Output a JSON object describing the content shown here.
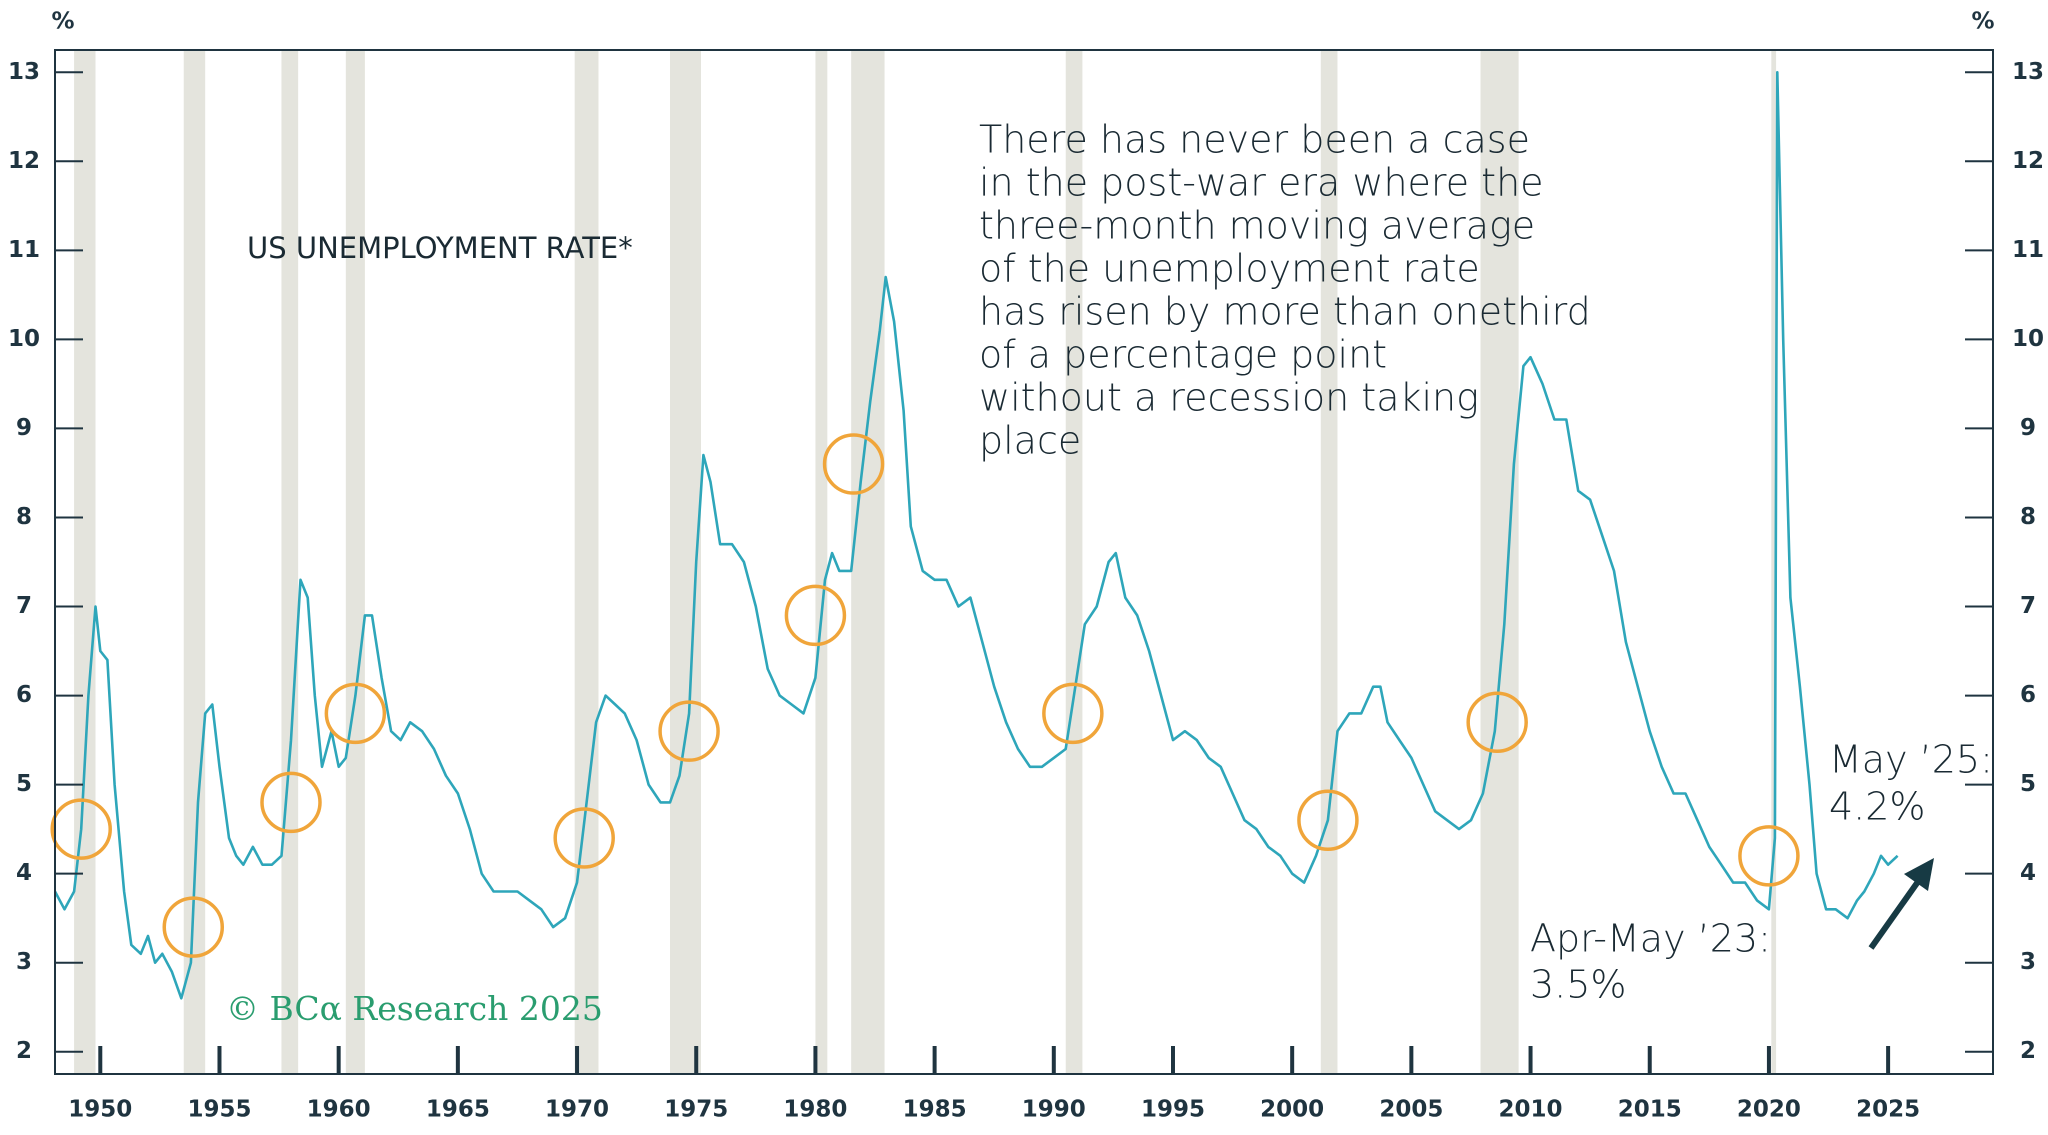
{
  "chart_data": {
    "type": "line",
    "title": "US UNEMPLOYMENT RATE*",
    "y_label": "%",
    "annotation_lines": [
      "There has never been a case",
      "in the post-war era where the",
      "three-month moving average",
      "of the unemployment rate",
      "has risen by more than onethird",
      "of a percentage point",
      "without a recession taking",
      "place"
    ],
    "latest_label": "May ’25:",
    "latest_value_label": "4.2%",
    "low_label": "Apr-May ’23:",
    "low_value_label": "3.5%",
    "source": "© BCα Research 2025",
    "xlim": [
      1948.1,
      2029.4
    ],
    "xticks": [
      1950,
      1955,
      1960,
      1965,
      1970,
      1975,
      1980,
      1985,
      1990,
      1995,
      2000,
      2005,
      2010,
      2015,
      2020,
      2025
    ],
    "ylim": [
      1.75,
      13.25
    ],
    "yticks": [
      2,
      3,
      4,
      5,
      6,
      7,
      8,
      9,
      10,
      11,
      12,
      13
    ],
    "recession_color": "#e4e4dd",
    "recessions": [
      [
        1948.9,
        1949.8
      ],
      [
        1953.5,
        1954.4
      ],
      [
        1957.6,
        1958.3
      ],
      [
        1960.3,
        1961.1
      ],
      [
        1969.9,
        1970.9
      ],
      [
        1973.9,
        1975.2
      ],
      [
        1980.0,
        1980.5
      ],
      [
        1981.5,
        1982.9
      ],
      [
        1990.5,
        1991.2
      ],
      [
        2001.2,
        2001.9
      ],
      [
        2007.9,
        2009.5
      ],
      [
        2020.1,
        2020.3
      ]
    ],
    "marker_color": "#f0a53a",
    "markers": {
      "x": [
        1949.2,
        1953.9,
        1958.0,
        1960.7,
        1970.3,
        1974.7,
        1980.0,
        1981.6,
        1990.8,
        2001.5,
        2008.6,
        2020.0
      ],
      "values": [
        4.5,
        3.4,
        4.8,
        5.8,
        4.4,
        5.6,
        6.9,
        8.6,
        5.8,
        4.6,
        5.7,
        4.2
      ]
    },
    "series": [
      {
        "color": "#2ea6ba",
        "x": [
          1948.1,
          1948.5,
          1948.9,
          1949.2,
          1949.5,
          1949.8,
          1950.0,
          1950.3,
          1950.6,
          1951.0,
          1951.3,
          1951.7,
          1952.0,
          1952.3,
          1952.6,
          1953.0,
          1953.4,
          1953.8,
          1954.1,
          1954.4,
          1954.7,
          1955.0,
          1955.4,
          1955.7,
          1956.0,
          1956.4,
          1956.8,
          1957.2,
          1957.6,
          1958.0,
          1958.4,
          1958.7,
          1959.0,
          1959.3,
          1959.7,
          1960.0,
          1960.3,
          1960.7,
          1961.1,
          1961.4,
          1961.8,
          1962.2,
          1962.6,
          1963.0,
          1963.5,
          1964.0,
          1964.5,
          1965.0,
          1965.5,
          1966.0,
          1966.5,
          1967.0,
          1967.5,
          1968.0,
          1968.5,
          1969.0,
          1969.5,
          1970.0,
          1970.4,
          1970.8,
          1971.2,
          1971.6,
          1972.0,
          1972.5,
          1973.0,
          1973.5,
          1973.9,
          1974.3,
          1974.7,
          1975.0,
          1975.3,
          1975.6,
          1976.0,
          1976.5,
          1977.0,
          1977.5,
          1978.0,
          1978.5,
          1979.0,
          1979.5,
          1980.0,
          1980.4,
          1980.7,
          1981.0,
          1981.5,
          1981.9,
          1982.3,
          1982.7,
          1982.95,
          1983.3,
          1983.7,
          1984.0,
          1984.5,
          1985.0,
          1985.5,
          1986.0,
          1986.5,
          1987.0,
          1987.5,
          1988.0,
          1988.5,
          1989.0,
          1989.5,
          1990.0,
          1990.5,
          1990.9,
          1991.3,
          1991.8,
          1992.3,
          1992.6,
          1993.0,
          1993.5,
          1994.0,
          1994.5,
          1995.0,
          1995.5,
          1996.0,
          1996.5,
          1997.0,
          1997.5,
          1998.0,
          1998.5,
          1999.0,
          1999.5,
          2000.0,
          2000.5,
          2001.0,
          2001.5,
          2001.9,
          2002.4,
          2002.9,
          2003.4,
          2003.7,
          2004.0,
          2004.5,
          2005.0,
          2005.5,
          2006.0,
          2006.5,
          2007.0,
          2007.5,
          2008.0,
          2008.5,
          2008.9,
          2009.3,
          2009.7,
          2010.0,
          2010.5,
          2011.0,
          2011.5,
          2012.0,
          2012.5,
          2013.0,
          2013.5,
          2014.0,
          2014.5,
          2015.0,
          2015.5,
          2016.0,
          2016.5,
          2017.0,
          2017.5,
          2018.0,
          2018.5,
          2019.0,
          2019.5,
          2020.0,
          2020.25,
          2020.35,
          2020.6,
          2020.9,
          2021.3,
          2021.7,
          2022.0,
          2022.4,
          2022.8,
          2023.3,
          2023.7,
          2024.0,
          2024.4,
          2024.7,
          2025.0,
          2025.4
        ],
        "values": [
          3.8,
          3.6,
          3.8,
          4.5,
          6.0,
          7.0,
          6.5,
          6.4,
          5.0,
          3.8,
          3.2,
          3.1,
          3.3,
          3.0,
          3.1,
          2.9,
          2.6,
          3.0,
          4.8,
          5.8,
          5.9,
          5.2,
          4.4,
          4.2,
          4.1,
          4.3,
          4.1,
          4.1,
          4.2,
          5.5,
          7.3,
          7.1,
          6.0,
          5.2,
          5.6,
          5.2,
          5.3,
          6.0,
          6.9,
          6.9,
          6.2,
          5.6,
          5.5,
          5.7,
          5.6,
          5.4,
          5.1,
          4.9,
          4.5,
          4.0,
          3.8,
          3.8,
          3.8,
          3.7,
          3.6,
          3.4,
          3.5,
          3.9,
          4.8,
          5.7,
          6.0,
          5.9,
          5.8,
          5.5,
          5.0,
          4.8,
          4.8,
          5.1,
          5.8,
          7.5,
          8.7,
          8.4,
          7.7,
          7.7,
          7.5,
          7.0,
          6.3,
          6.0,
          5.9,
          5.8,
          6.2,
          7.3,
          7.6,
          7.4,
          7.4,
          8.4,
          9.3,
          10.1,
          10.7,
          10.2,
          9.2,
          7.9,
          7.4,
          7.3,
          7.3,
          7.0,
          7.1,
          6.6,
          6.1,
          5.7,
          5.4,
          5.2,
          5.2,
          5.3,
          5.4,
          6.1,
          6.8,
          7.0,
          7.5,
          7.6,
          7.1,
          6.9,
          6.5,
          6.0,
          5.5,
          5.6,
          5.5,
          5.3,
          5.2,
          4.9,
          4.6,
          4.5,
          4.3,
          4.2,
          4.0,
          3.9,
          4.2,
          4.6,
          5.6,
          5.8,
          5.8,
          6.1,
          6.1,
          5.7,
          5.5,
          5.3,
          5.0,
          4.7,
          4.6,
          4.5,
          4.6,
          4.9,
          5.6,
          6.8,
          8.6,
          9.7,
          9.8,
          9.5,
          9.1,
          9.1,
          8.3,
          8.2,
          7.8,
          7.4,
          6.6,
          6.1,
          5.6,
          5.2,
          4.9,
          4.9,
          4.6,
          4.3,
          4.1,
          3.9,
          3.9,
          3.7,
          3.6,
          4.4,
          13.0,
          10.0,
          7.1,
          6.1,
          5.0,
          4.0,
          3.6,
          3.6,
          3.5,
          3.7,
          3.8,
          4.0,
          4.2,
          4.1,
          4.2
        ]
      }
    ]
  }
}
